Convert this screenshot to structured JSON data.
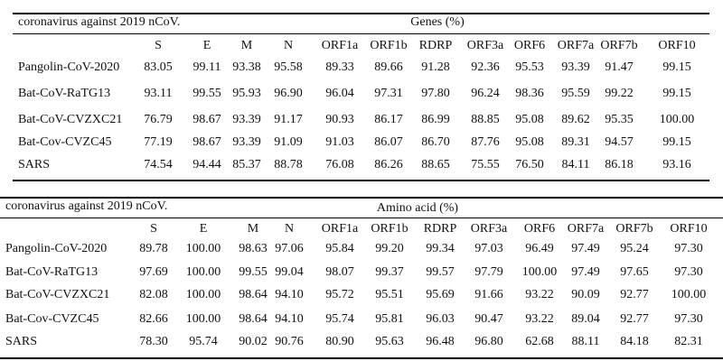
{
  "tables": [
    {
      "corner_label": "coronavirus against 2019 nCoV.",
      "group_title": "Genes (%)",
      "columns": [
        "S",
        "E",
        "M",
        "N",
        "ORF1a",
        "ORF1b",
        "RDRP",
        "ORF3a",
        "ORF6",
        "ORF7a",
        "ORF7b",
        "ORF10"
      ],
      "rows": [
        {
          "name": "Pangolin-CoV-2020",
          "values": [
            "83.05",
            "99.11",
            "93.38",
            "95.58",
            "89.33",
            "89.66",
            "91.28",
            "92.36",
            "95.53",
            "93.39",
            "91.47",
            "99.15"
          ]
        },
        {
          "name": "Bat-CoV-RaTG13",
          "values": [
            "93.11",
            "99.55",
            "95.93",
            "96.90",
            "96.04",
            "97.31",
            "97.80",
            "96.24",
            "98.36",
            "95.59",
            "99.22",
            "99.15"
          ]
        },
        {
          "name": "Bat-CoV-CVZXC21",
          "values": [
            "76.79",
            "98.67",
            "93.39",
            "91.17",
            "90.93",
            "86.17",
            "86.99",
            "88.85",
            "95.08",
            "89.62",
            "95.35",
            "100.00"
          ]
        },
        {
          "name": "Bat-Cov-CVZC45",
          "values": [
            "77.19",
            "98.67",
            "93.39",
            "91.09",
            "91.03",
            "86.07",
            "86.70",
            "87.76",
            "95.08",
            "89.31",
            "94.57",
            "99.15"
          ]
        },
        {
          "name": "SARS",
          "values": [
            "74.54",
            "94.44",
            "85.37",
            "88.78",
            "76.08",
            "86.26",
            "88.65",
            "75.55",
            "76.50",
            "84.11",
            "86.18",
            "93.16"
          ]
        }
      ]
    },
    {
      "corner_label": "coronavirus against 2019 nCoV.",
      "group_title": "Amino acid (%)",
      "columns": [
        "S",
        "E",
        "M",
        "N",
        "ORF1a",
        "ORF1b",
        "RDRP",
        "ORF3a",
        "ORF6",
        "ORF7a",
        "ORF7b",
        "ORF10"
      ],
      "rows": [
        {
          "name": "Pangolin-CoV-2020",
          "values": [
            "89.78",
            "100.00",
            "98.63",
            "97.06",
            "95.84",
            "99.20",
            "99.34",
            "97.03",
            "96.49",
            "97.49",
            "95.24",
            "97.30"
          ]
        },
        {
          "name": "Bat-CoV-RaTG13",
          "values": [
            "97.69",
            "100.00",
            "99.55",
            "99.04",
            "98.07",
            "99.37",
            "99.57",
            "97.79",
            "100.00",
            "97.49",
            "97.65",
            "97.30"
          ]
        },
        {
          "name": "Bat-CoV-CVZXC21",
          "values": [
            "82.08",
            "100.00",
            "98.64",
            "94.10",
            "95.72",
            "95.51",
            "95.69",
            "91.66",
            "93.22",
            "90.09",
            "92.77",
            "100.00"
          ]
        },
        {
          "name": "Bat-Cov-CVZC45",
          "values": [
            "82.66",
            "100.00",
            "98.64",
            "94.10",
            "95.74",
            "95.81",
            "96.03",
            "90.47",
            "93.22",
            "89.04",
            "92.77",
            "97.30"
          ]
        },
        {
          "name": "SARS",
          "values": [
            "78.30",
            "95.74",
            "90.02",
            "90.76",
            "80.90",
            "95.63",
            "96.48",
            "96.80",
            "62.68",
            "88.11",
            "84.18",
            "82.31"
          ]
        }
      ]
    }
  ]
}
